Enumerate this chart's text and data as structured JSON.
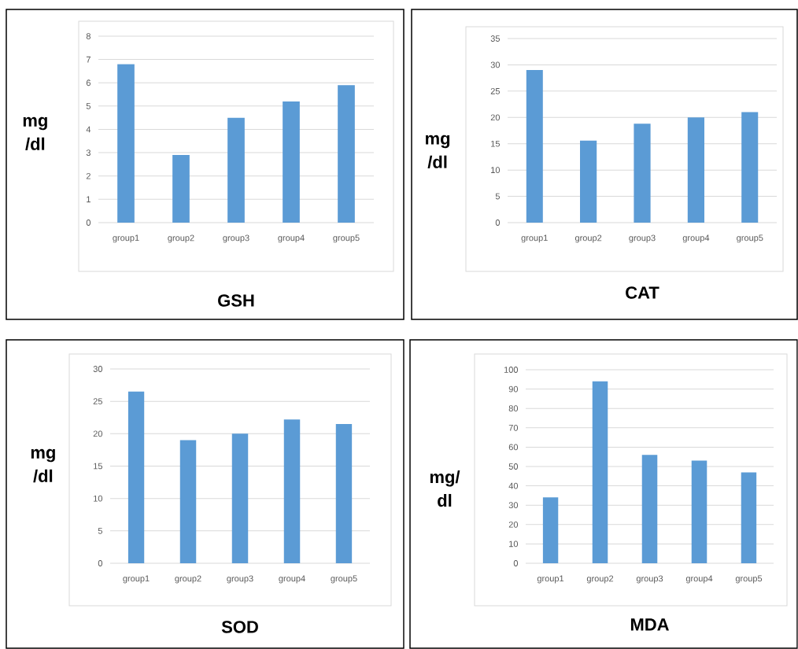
{
  "chart_data": [
    {
      "type": "bar",
      "title": "GSH",
      "ylabel": "mg /dl",
      "categories": [
        "group1",
        "group2",
        "group3",
        "group4",
        "group5"
      ],
      "values": [
        6.8,
        2.9,
        4.5,
        5.2,
        5.9
      ],
      "color": "#5b9bd5",
      "ylim": [
        0,
        8
      ],
      "yticks": [
        0,
        1,
        2,
        3,
        4,
        5,
        6,
        7,
        8
      ],
      "grid": "y"
    },
    {
      "type": "bar",
      "title": "CAT",
      "ylabel": "mg /dl",
      "categories": [
        "group1",
        "group2",
        "group3",
        "group4",
        "group5"
      ],
      "values": [
        29,
        15.6,
        18.8,
        20,
        21
      ],
      "color": "#5b9bd5",
      "ylim": [
        0,
        35
      ],
      "yticks": [
        0,
        5,
        10,
        15,
        20,
        25,
        30,
        35
      ],
      "grid": "y"
    },
    {
      "type": "bar",
      "title": "SOD",
      "ylabel": "mg /dl",
      "categories": [
        "group1",
        "group2",
        "group3",
        "group4",
        "group5"
      ],
      "values": [
        26.5,
        19,
        20,
        22.2,
        21.5
      ],
      "color": "#5b9bd5",
      "ylim": [
        0,
        30
      ],
      "yticks": [
        0,
        5,
        10,
        15,
        20,
        25,
        30
      ],
      "grid": "y"
    },
    {
      "type": "bar",
      "title": "MDA",
      "ylabel": "mg/ dl",
      "categories": [
        "group1",
        "group2",
        "group3",
        "group4",
        "group5"
      ],
      "values": [
        34,
        94,
        56,
        53,
        47
      ],
      "color": "#5b9bd5",
      "ylim": [
        0,
        100
      ],
      "yticks": [
        0,
        10,
        20,
        30,
        40,
        50,
        60,
        70,
        80,
        90,
        100
      ],
      "grid": "y"
    }
  ]
}
